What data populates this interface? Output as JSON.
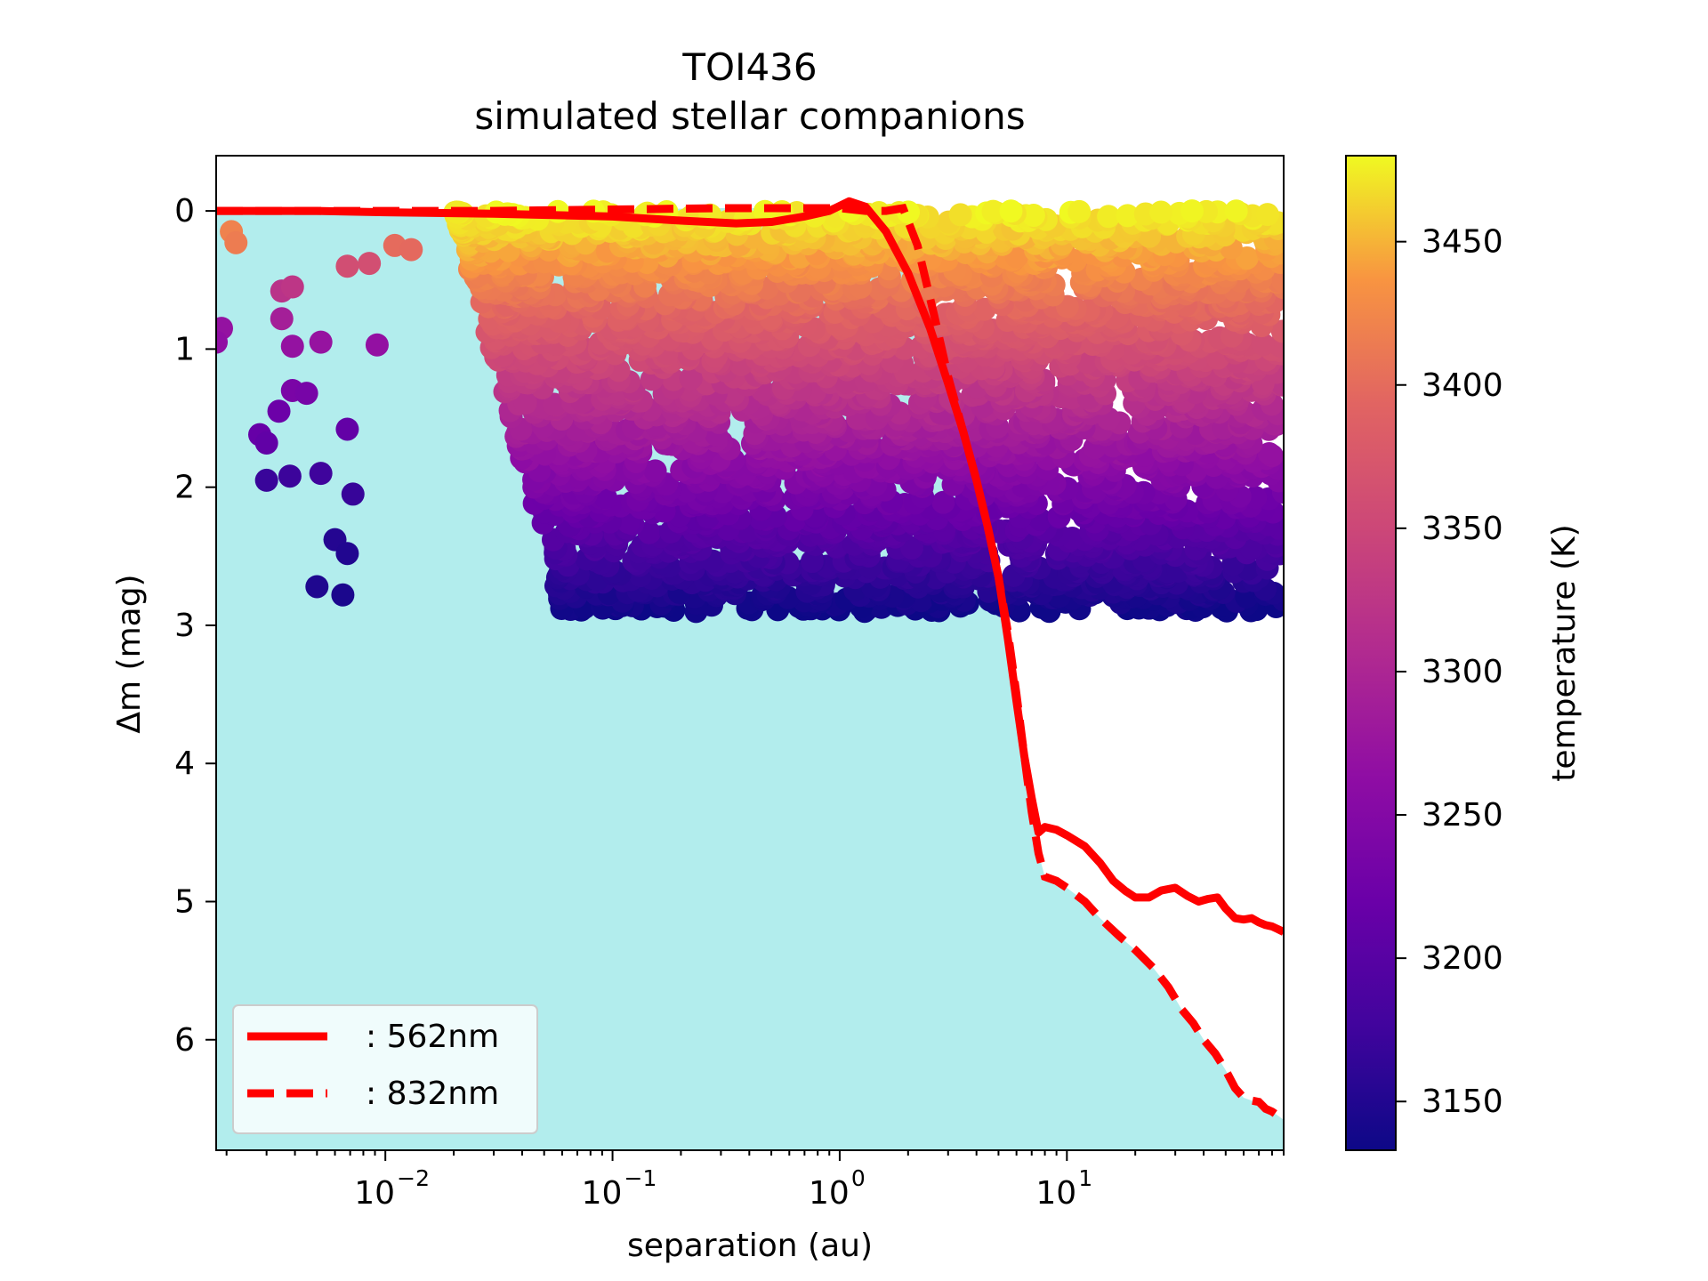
{
  "chart_data": {
    "type": "scatter",
    "title": "TOI436",
    "subtitle": "simulated stellar companions",
    "xlabel": "separation (au)",
    "ylabel": "Δm (mag)",
    "xscale": "log",
    "xlim": [
      0.0018,
      90
    ],
    "ylim": [
      6.8,
      -0.4
    ],
    "x_ticks": [
      {
        "value": 0.01,
        "base": "10",
        "exp": "−2"
      },
      {
        "value": 0.1,
        "base": "10",
        "exp": "−1"
      },
      {
        "value": 1,
        "base": "10",
        "exp": "0"
      },
      {
        "value": 10,
        "base": "10",
        "exp": "1"
      }
    ],
    "y_ticks": [
      {
        "value": 0,
        "label": "0"
      },
      {
        "value": 1,
        "label": "1"
      },
      {
        "value": 2,
        "label": "2"
      },
      {
        "value": 3,
        "label": "3"
      },
      {
        "value": 4,
        "label": "4"
      },
      {
        "value": 5,
        "label": "5"
      },
      {
        "value": 6,
        "label": "6"
      }
    ],
    "fill_region": {
      "description": "undetectable region below contrast curve",
      "color": "#b2eded"
    },
    "series": [
      {
        "name": ": 562nm",
        "style": "solid",
        "color": "#ff0000",
        "x": [
          0.0018,
          0.005,
          0.01,
          0.03,
          0.1,
          0.2,
          0.35,
          0.5,
          0.7,
          0.9,
          1.1,
          1.3,
          1.6,
          2.0,
          2.5,
          3.0,
          3.5,
          4.0,
          4.5,
          5.0,
          5.5,
          6.0,
          6.5,
          7.0,
          7.5,
          8.0,
          9.0,
          10,
          12,
          14,
          16,
          18,
          20,
          23,
          26,
          30,
          34,
          38,
          42,
          46,
          50,
          55,
          60,
          65,
          70,
          75,
          80,
          85,
          90
        ],
        "y": [
          0.0,
          0.0,
          0.01,
          0.02,
          0.04,
          0.07,
          0.09,
          0.08,
          0.04,
          0.0,
          -0.07,
          -0.03,
          0.15,
          0.45,
          0.85,
          1.25,
          1.6,
          1.95,
          2.3,
          2.65,
          3.1,
          3.55,
          3.95,
          4.25,
          4.5,
          4.46,
          4.48,
          4.52,
          4.6,
          4.72,
          4.85,
          4.92,
          4.97,
          4.97,
          4.92,
          4.9,
          4.96,
          5.0,
          4.98,
          4.97,
          5.05,
          5.12,
          5.13,
          5.12,
          5.15,
          5.17,
          5.18,
          5.2,
          5.22
        ]
      },
      {
        "name": ": 832nm",
        "style": "dashed",
        "color": "#ff0000",
        "x": [
          0.0018,
          0.005,
          0.01,
          0.03,
          0.1,
          0.3,
          0.6,
          1.0,
          1.3,
          1.6,
          1.9,
          2.2,
          2.6,
          3.0,
          3.5,
          4.0,
          4.5,
          5.0,
          5.5,
          6.0,
          6.5,
          7.0,
          7.5,
          8.0,
          9.0,
          10,
          12,
          14,
          17,
          20,
          24,
          28,
          32,
          36,
          40,
          45,
          50,
          55,
          60,
          65,
          70,
          75,
          80,
          85,
          90
        ],
        "y": [
          0.0,
          0.0,
          0.0,
          0.0,
          -0.01,
          -0.02,
          -0.02,
          -0.02,
          0.0,
          0.0,
          -0.02,
          0.25,
          0.75,
          1.2,
          1.6,
          1.95,
          2.3,
          2.65,
          3.05,
          3.5,
          3.95,
          4.35,
          4.65,
          4.82,
          4.85,
          4.9,
          5.0,
          5.12,
          5.25,
          5.35,
          5.48,
          5.62,
          5.78,
          5.88,
          6.0,
          6.1,
          6.22,
          6.35,
          6.42,
          6.44,
          6.45,
          6.5,
          6.52,
          6.55,
          6.58
        ]
      }
    ],
    "scatter": {
      "name": "simulated stellar companions",
      "color_by": "temperature",
      "points_estimated": [
        {
          "x": 0.0021,
          "y": 0.15,
          "t": 3420
        },
        {
          "x": 0.0022,
          "y": 0.23,
          "t": 3415
        },
        {
          "x": 0.0019,
          "y": 0.85,
          "t": 3270
        },
        {
          "x": 0.0018,
          "y": 0.95,
          "t": 3265
        },
        {
          "x": 0.0028,
          "y": 1.62,
          "t": 3215
        },
        {
          "x": 0.003,
          "y": 1.68,
          "t": 3210
        },
        {
          "x": 0.0034,
          "y": 1.45,
          "t": 3222
        },
        {
          "x": 0.003,
          "y": 1.95,
          "t": 3170
        },
        {
          "x": 0.0038,
          "y": 1.92,
          "t": 3172
        },
        {
          "x": 0.0035,
          "y": 0.58,
          "t": 3320
        },
        {
          "x": 0.0039,
          "y": 0.55,
          "t": 3325
        },
        {
          "x": 0.0035,
          "y": 0.78,
          "t": 3290
        },
        {
          "x": 0.0039,
          "y": 0.98,
          "t": 3270
        },
        {
          "x": 0.0039,
          "y": 1.3,
          "t": 3238
        },
        {
          "x": 0.0045,
          "y": 1.32,
          "t": 3235
        },
        {
          "x": 0.0052,
          "y": 0.95,
          "t": 3272
        },
        {
          "x": 0.0052,
          "y": 1.9,
          "t": 3175
        },
        {
          "x": 0.005,
          "y": 2.72,
          "t": 3148
        },
        {
          "x": 0.0065,
          "y": 2.78,
          "t": 3145
        },
        {
          "x": 0.006,
          "y": 2.38,
          "t": 3152
        },
        {
          "x": 0.0068,
          "y": 2.48,
          "t": 3150
        },
        {
          "x": 0.0068,
          "y": 1.58,
          "t": 3212
        },
        {
          "x": 0.0072,
          "y": 2.05,
          "t": 3168
        },
        {
          "x": 0.0068,
          "y": 0.4,
          "t": 3360
        },
        {
          "x": 0.0085,
          "y": 0.38,
          "t": 3362
        },
        {
          "x": 0.0092,
          "y": 0.97,
          "t": 3268
        },
        {
          "x": 0.011,
          "y": 0.25,
          "t": 3400
        },
        {
          "x": 0.013,
          "y": 0.28,
          "t": 3398
        }
      ],
      "sep_range_au": [
        0.0018,
        90
      ],
      "dm_range_mag": [
        0.0,
        2.9
      ]
    },
    "colorbar": {
      "label": "temperature (K)",
      "range": [
        3133,
        3480
      ],
      "ticks": [
        3150,
        3200,
        3250,
        3300,
        3350,
        3400,
        3450
      ],
      "tick_labels": [
        "3150",
        "3200",
        "3250",
        "3300",
        "3350",
        "3400",
        "3450"
      ],
      "colormap": "plasma"
    },
    "legend": {
      "location": "lower-left",
      "entries": [
        ": 562nm",
        ": 832nm"
      ]
    }
  }
}
